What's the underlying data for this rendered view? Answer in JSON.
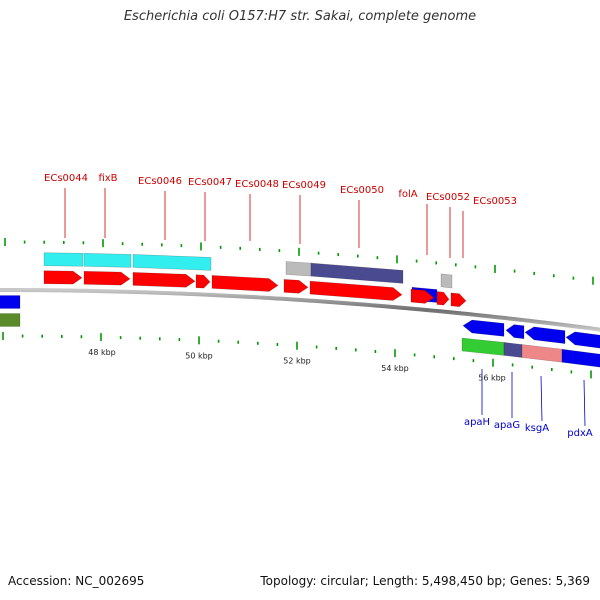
{
  "title": "Escherichia coli O157:H7 str. Sakai, complete genome",
  "footer": {
    "accession": "Accession: NC_002695",
    "summary": "Topology: circular; Length: 5,498,450 bp; Genes: 5,369"
  },
  "colors": {
    "backbone": "#8a8a8a",
    "label_forward": "#cc0000",
    "label_reverse": "#0000cc",
    "cds": "#ff0000",
    "blue": "#0000ee",
    "cyan": "#33eeee",
    "grey": "#bbbbbb",
    "navy": "#4a4a90",
    "green": "#33cc33",
    "salmon": "#ee8888",
    "olive": "#5a8a2a",
    "tick": "#009900"
  },
  "scale_labels": [
    {
      "text": "48 kbp",
      "kbp": 48
    },
    {
      "text": "50 kbp",
      "kbp": 50
    },
    {
      "text": "52 kbp",
      "kbp": 52
    },
    {
      "text": "54 kbp",
      "kbp": 54
    },
    {
      "text": "56 kbp",
      "kbp": 56
    }
  ],
  "forward_labels": [
    "ECs0044",
    "fixB",
    "ECs0046",
    "ECs0047",
    "ECs0048",
    "ECs0049",
    "ECs0050",
    "folA",
    "ECs0052",
    "ECs0053"
  ],
  "reverse_labels": [
    "apaH",
    "apaG",
    "ksgA",
    "pdxA"
  ]
}
